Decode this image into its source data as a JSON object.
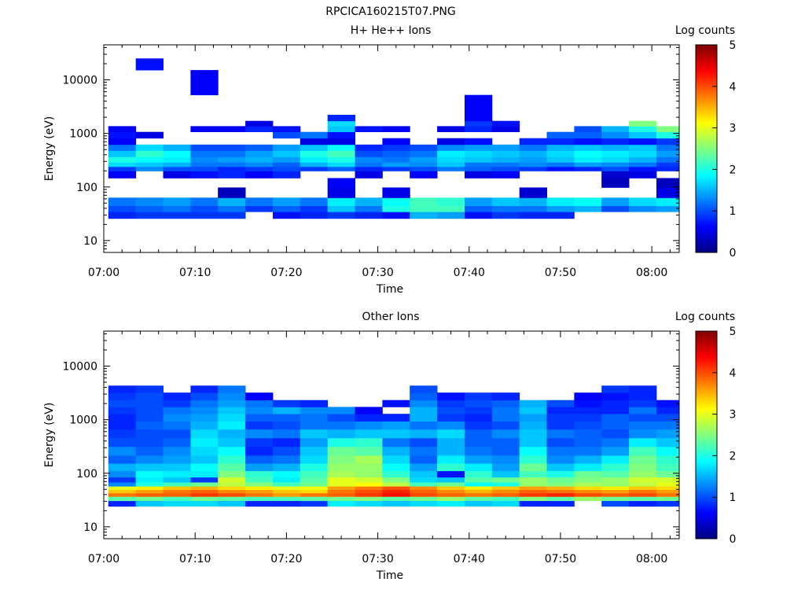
{
  "figure": {
    "title": "RPCICA160215T07.PNG"
  },
  "chart_data": [
    {
      "type": "heatmap",
      "title": "H+ He++ Ions",
      "xlabel": "Time",
      "ylabel": "Energy (eV)",
      "yscale": "log",
      "xlim": [
        "07:00",
        "08:03"
      ],
      "ylim": [
        6,
        45000
      ],
      "x_ticks": [
        "07:00",
        "07:10",
        "07:20",
        "07:30",
        "07:40",
        "07:50",
        "08:00"
      ],
      "y_ticks": [
        "10",
        "100",
        "1000",
        "10000"
      ],
      "colorbar": {
        "label": "Log counts",
        "min": 0,
        "max": 5,
        "ticks": [
          "0",
          "1",
          "2",
          "3",
          "4",
          "5"
        ]
      },
      "time_bins": [
        "07:02",
        "07:05",
        "07:08",
        "07:11",
        "07:14",
        "07:17",
        "07:20",
        "07:23",
        "07:26",
        "07:29",
        "07:32",
        "07:35",
        "07:38",
        "07:41",
        "07:44",
        "07:47",
        "07:50",
        "07:53",
        "07:56",
        "07:59",
        "08:02"
      ],
      "energy_bins": [
        30,
        40,
        50,
        80,
        120,
        180,
        220,
        260,
        320,
        420,
        550,
        700,
        950,
        1200,
        1550,
        1900,
        2600,
        10500,
        22000
      ],
      "values": [
        [
          0.8,
          0.9,
          0.9,
          0.9,
          0.9,
          0,
          0.7,
          0.8,
          0.9,
          0.8,
          0.7,
          1.5,
          1.4,
          0.7,
          0.9,
          0.8,
          0.8,
          0,
          0,
          0,
          0
        ],
        [
          1.0,
          1.1,
          1.2,
          1.0,
          1.2,
          0.9,
          1.1,
          0.9,
          1.6,
          1.2,
          2.0,
          2.2,
          2.2,
          1.1,
          1.2,
          1.2,
          1.4,
          1.5,
          1.0,
          1.3,
          1.4
        ],
        [
          1.2,
          1.3,
          1.4,
          1.2,
          1.5,
          1.2,
          1.4,
          1.2,
          1.8,
          1.5,
          1.9,
          2.2,
          2.1,
          1.4,
          1.6,
          1.5,
          1.8,
          1.9,
          1.4,
          1.7,
          1.8
        ],
        [
          0,
          0,
          0,
          0,
          0.3,
          0,
          0,
          0,
          0.5,
          0,
          0.5,
          0,
          0,
          0,
          0,
          0.4,
          0,
          0,
          0,
          0,
          0.5
        ],
        [
          0,
          0,
          0,
          0,
          0,
          0,
          0,
          0,
          0.6,
          0,
          0,
          0,
          0,
          0,
          0,
          0,
          0,
          0,
          0.3,
          0,
          0.3
        ],
        [
          0.6,
          0,
          0.5,
          0.7,
          0.8,
          0.6,
          0.8,
          0,
          0,
          0.5,
          0,
          0.6,
          0,
          0.5,
          0.6,
          0,
          0,
          0,
          0.4,
          0.5,
          0
        ],
        [
          0.9,
          1.3,
          1.0,
          1.0,
          0.8,
          0.9,
          1.0,
          0.9,
          1.1,
          0.8,
          0.9,
          1.0,
          1.2,
          1.1,
          1.0,
          0.9,
          0.7,
          0.8,
          1.0,
          0.7,
          0.8
        ],
        [
          1.7,
          1.6,
          1.5,
          1.2,
          1.2,
          1.3,
          1.1,
          1.5,
          1.7,
          1.2,
          1.4,
          1.3,
          1.6,
          1.2,
          1.2,
          1.3,
          1.2,
          1.4,
          1.3,
          1.2,
          0.9
        ],
        [
          2.0,
          1.9,
          1.8,
          1.3,
          1.4,
          1.5,
          1.4,
          1.8,
          2.0,
          1.3,
          1.2,
          1.4,
          1.7,
          1.6,
          1.5,
          1.4,
          1.6,
          1.8,
          1.7,
          1.5,
          1.2
        ],
        [
          1.6,
          2.1,
          1.9,
          1.2,
          1.2,
          1.4,
          1.6,
          2.0,
          2.2,
          1.0,
          1.1,
          1.2,
          1.8,
          1.7,
          1.6,
          1.5,
          1.7,
          1.9,
          1.8,
          1.7,
          1.4
        ],
        [
          1.2,
          1.7,
          1.5,
          1.0,
          1.0,
          1.1,
          1.4,
          1.6,
          1.9,
          0.8,
          0.9,
          1.0,
          1.3,
          1.4,
          1.4,
          1.2,
          1.5,
          1.6,
          1.5,
          1.6,
          1.2
        ],
        [
          0.6,
          0,
          0,
          0,
          0,
          0,
          0,
          0.5,
          0.5,
          0,
          0.6,
          0,
          0.5,
          0.7,
          0,
          0.8,
          0.8,
          0.7,
          0.8,
          0.7,
          0.9
        ],
        [
          0.7,
          0.5,
          0,
          0,
          0,
          0,
          1.0,
          1.2,
          0.7,
          0,
          0,
          0,
          0,
          0,
          0,
          0,
          1.1,
          1.1,
          1.3,
          1.6,
          2.0
        ],
        [
          0.6,
          0,
          0,
          0.6,
          0.6,
          0.8,
          0.7,
          0,
          1.6,
          0.7,
          0.6,
          0,
          0.5,
          0.8,
          0.5,
          0,
          0,
          1.0,
          1.5,
          2.0,
          2.5
        ],
        [
          0,
          0,
          0,
          0,
          0,
          0.5,
          0,
          0,
          1.7,
          0,
          0,
          0,
          0,
          0.9,
          0.7,
          0,
          0,
          0,
          0,
          2.5,
          0
        ],
        [
          0,
          0,
          0,
          0,
          0,
          0,
          0,
          0,
          0.8,
          0,
          0,
          0,
          0,
          0.6,
          0,
          0,
          0,
          0,
          0,
          0,
          0
        ],
        [
          0,
          0,
          0,
          0,
          0,
          0,
          0,
          0,
          0,
          0,
          0,
          0,
          0,
          0.6,
          0,
          0,
          0,
          0,
          0,
          0,
          0
        ],
        [
          0,
          0,
          0,
          0.6,
          0,
          0,
          0,
          0,
          0,
          0,
          0,
          0,
          0,
          0,
          0,
          0,
          0,
          0,
          0,
          0,
          0
        ],
        [
          0,
          0.7,
          0,
          0,
          0,
          0,
          0,
          0,
          0,
          0,
          0,
          0,
          0,
          0,
          0,
          0,
          0,
          0,
          0,
          0,
          0
        ]
      ]
    },
    {
      "type": "heatmap",
      "title": "Other Ions",
      "xlabel": "Time",
      "ylabel": "Energy (eV)",
      "yscale": "log",
      "xlim": [
        "07:00",
        "08:03"
      ],
      "ylim": [
        6,
        45000
      ],
      "x_ticks": [
        "07:00",
        "07:10",
        "07:20",
        "07:30",
        "07:40",
        "07:50",
        "08:00"
      ],
      "y_ticks": [
        "10",
        "100",
        "1000",
        "10000"
      ],
      "colorbar": {
        "label": "Log counts",
        "min": 0,
        "max": 5,
        "ticks": [
          "0",
          "1",
          "2",
          "3",
          "4",
          "5"
        ]
      },
      "time_bins": [
        "07:02",
        "07:05",
        "07:08",
        "07:11",
        "07:14",
        "07:17",
        "07:20",
        "07:23",
        "07:26",
        "07:29",
        "07:32",
        "07:35",
        "07:38",
        "07:41",
        "07:44",
        "07:47",
        "07:50",
        "07:53",
        "07:56",
        "07:59",
        "08:02"
      ],
      "energy_bins": [
        28,
        34,
        40,
        46,
        53,
        62,
        75,
        95,
        130,
        180,
        260,
        380,
        550,
        800,
        1100,
        1500,
        2000,
        2700,
        3800
      ],
      "values": [
        [
          0.8,
          1.6,
          1.7,
          1.7,
          1.6,
          0.8,
          0.8,
          0.9,
          1.8,
          1.7,
          1.6,
          1.7,
          1.8,
          1.6,
          1.7,
          0.8,
          0.8,
          0,
          1.0,
          0.8,
          0.9
        ],
        [
          2.3,
          2.4,
          2.2,
          2.4,
          2.3,
          2.2,
          2.2,
          2.3,
          2.4,
          2.5,
          2.3,
          2.4,
          2.6,
          2.3,
          2.2,
          2.5,
          2.3,
          2.6,
          2.4,
          2.3,
          2.4
        ],
        [
          3.8,
          3.9,
          3.9,
          4.1,
          4.0,
          3.8,
          3.6,
          3.8,
          3.9,
          4.1,
          4.3,
          4.0,
          3.9,
          3.8,
          3.9,
          4.1,
          4.2,
          4.0,
          3.9,
          4.0,
          3.8
        ],
        [
          3.4,
          3.6,
          3.8,
          3.9,
          3.7,
          3.6,
          3.4,
          3.3,
          3.8,
          4.0,
          4.2,
          3.9,
          3.7,
          3.5,
          3.7,
          3.9,
          3.8,
          3.7,
          3.6,
          3.8,
          3.6
        ],
        [
          3.0,
          3.2,
          3.4,
          3.5,
          3.3,
          3.2,
          3.0,
          3.1,
          3.6,
          3.8,
          4.0,
          3.7,
          3.4,
          3.2,
          3.4,
          3.6,
          3.5,
          3.3,
          3.2,
          3.4,
          3.3
        ],
        [
          1.3,
          2.0,
          2.2,
          2.4,
          2.8,
          2.5,
          2.2,
          2.4,
          3.0,
          3.1,
          2.8,
          2.2,
          2.4,
          1.9,
          2.0,
          2.6,
          2.5,
          2.7,
          2.6,
          2.8,
          3.0
        ],
        [
          0.9,
          1.8,
          1.6,
          0.9,
          2.9,
          2.2,
          1.8,
          2.3,
          3.0,
          2.9,
          2.5,
          1.7,
          1.6,
          2.3,
          2.4,
          2.6,
          2.4,
          2.5,
          2.6,
          2.9,
          2.9
        ],
        [
          1.3,
          1.9,
          1.8,
          1.8,
          2.5,
          2.1,
          1.9,
          2.2,
          2.7,
          2.6,
          2.1,
          1.6,
          0.7,
          2.1,
          1.6,
          2.2,
          2.0,
          2.4,
          2.3,
          2.6,
          2.4
        ],
        [
          1.5,
          1.6,
          1.6,
          1.9,
          2.3,
          1.4,
          1.5,
          2.0,
          2.6,
          2.6,
          1.9,
          1.4,
          2.1,
          1.8,
          1.4,
          2.4,
          1.6,
          1.8,
          2.1,
          2.5,
          2.2
        ],
        [
          1.1,
          1.3,
          1.4,
          1.6,
          2.1,
          1.1,
          1.2,
          1.7,
          2.5,
          2.7,
          1.7,
          1.1,
          1.8,
          1.4,
          1.3,
          2.1,
          1.3,
          1.5,
          1.8,
          2.4,
          2.1
        ],
        [
          1.3,
          1.1,
          1.3,
          1.7,
          1.9,
          0.8,
          1.0,
          1.6,
          2.4,
          2.3,
          1.5,
          1.2,
          1.5,
          1.2,
          1.1,
          1.9,
          1.2,
          1.2,
          1.4,
          2.2,
          1.9
        ],
        [
          1.0,
          1.0,
          1.1,
          1.8,
          1.6,
          0.9,
          0.8,
          1.4,
          2.0,
          2.1,
          1.2,
          1.0,
          1.5,
          1.1,
          1.1,
          1.6,
          1.0,
          1.1,
          1.2,
          1.8,
          1.6
        ],
        [
          0.9,
          1.0,
          1.0,
          1.7,
          1.5,
          1.3,
          1.2,
          1.6,
          1.5,
          1.6,
          1.6,
          1.5,
          1.7,
          1.1,
          1.3,
          1.6,
          1.2,
          1.1,
          1.0,
          1.3,
          1.4
        ],
        [
          0.8,
          1.1,
          1.2,
          1.5,
          1.8,
          0.9,
          1.0,
          1.2,
          1.2,
          1.3,
          1.4,
          1.2,
          1.3,
          0.9,
          1.0,
          1.5,
          0.9,
          1.0,
          1.1,
          1.2,
          1.2
        ],
        [
          0.8,
          1.0,
          1.3,
          1.4,
          1.7,
          1.1,
          1.1,
          1.2,
          1.0,
          0.8,
          0.8,
          1.5,
          0.9,
          0.8,
          1.2,
          1.4,
          0.9,
          0.9,
          1.1,
          1.0,
          1.0
        ],
        [
          0.9,
          1.0,
          1.2,
          1.3,
          1.6,
          1.3,
          1.5,
          1.3,
          1.3,
          0.6,
          0,
          1.5,
          1.0,
          0.9,
          1.2,
          1.6,
          0.8,
          0.8,
          0.8,
          1.2,
          0.8
        ],
        [
          1.0,
          1.0,
          0.9,
          1.2,
          1.4,
          1.2,
          0.9,
          0.8,
          0,
          0,
          0.7,
          1.3,
          0.9,
          1.0,
          1.1,
          1.5,
          1.0,
          0.7,
          0.8,
          0.9,
          0.7
        ],
        [
          0.9,
          1.0,
          0.8,
          1.0,
          1.3,
          0.6,
          0,
          0,
          0,
          0,
          0,
          1.1,
          0.7,
          0.9,
          0.8,
          0,
          0,
          0.6,
          0.7,
          0.8,
          0
        ],
        [
          0.8,
          0.9,
          0,
          0.8,
          1.2,
          0,
          0,
          0,
          0,
          0,
          0,
          1.0,
          0,
          0,
          0,
          0,
          0,
          0,
          0.9,
          0.8,
          0
        ]
      ]
    }
  ]
}
